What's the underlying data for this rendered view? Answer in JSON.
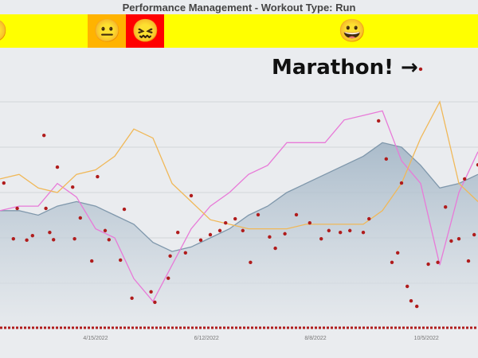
{
  "chart_data": {
    "type": "line",
    "title": "Performance Management - Workout Type: Run",
    "annotation": "Marathon! →",
    "x_tick_labels": [
      "4/15/2022",
      "6/12/2022",
      "8/8/2022",
      "10/5/2022"
    ],
    "x_tick_dates": [
      "2022-04-15",
      "2022-06-12",
      "2022-08-08",
      "2022-10-05"
    ],
    "xlim": [
      "2022-02-24",
      "2022-11-01"
    ],
    "ylim": [
      0,
      6
    ],
    "grid": true,
    "legend": "none",
    "x": [
      "2022-02-24",
      "2022-03-06",
      "2022-03-16",
      "2022-03-26",
      "2022-04-05",
      "2022-04-15",
      "2022-04-25",
      "2022-05-05",
      "2022-05-15",
      "2022-05-25",
      "2022-06-04",
      "2022-06-14",
      "2022-06-24",
      "2022-07-04",
      "2022-07-14",
      "2022-07-24",
      "2022-08-03",
      "2022-08-13",
      "2022-08-23",
      "2022-09-02",
      "2022-09-12",
      "2022-09-22",
      "2022-10-02",
      "2022-10-12",
      "2022-10-22",
      "2022-11-01"
    ],
    "series": [
      {
        "type": "area",
        "color": "#7f97ab",
        "values": [
          2.6,
          2.6,
          2.5,
          2.7,
          2.8,
          2.7,
          2.5,
          2.3,
          1.9,
          1.7,
          1.8,
          2.0,
          2.2,
          2.5,
          2.7,
          3.0,
          3.2,
          3.4,
          3.6,
          3.8,
          4.1,
          4.0,
          3.6,
          3.1,
          3.2,
          3.4
        ]
      },
      {
        "type": "line",
        "color": "#e87ad8",
        "values": [
          2.6,
          2.7,
          2.7,
          3.2,
          2.9,
          2.2,
          2.0,
          1.1,
          0.6,
          1.4,
          2.2,
          2.7,
          3.0,
          3.4,
          3.6,
          4.1,
          4.1,
          4.1,
          4.6,
          4.7,
          4.8,
          3.7,
          3.2,
          1.4,
          3.0,
          3.9
        ]
      },
      {
        "type": "line",
        "color": "#f0b858",
        "values": [
          3.3,
          3.4,
          3.1,
          3.0,
          3.4,
          3.5,
          3.8,
          4.4,
          4.2,
          3.2,
          2.8,
          2.4,
          2.3,
          2.2,
          2.2,
          2.2,
          2.3,
          2.3,
          2.3,
          2.3,
          2.6,
          3.2,
          4.2,
          5.0,
          3.2,
          2.8
        ]
      }
    ],
    "points": {
      "color": "#b01c1c",
      "values": [
        [
          "2022-02-26",
          3.21
        ],
        [
          "2022-03-03",
          1.98
        ],
        [
          "2022-03-05",
          2.65
        ],
        [
          "2022-03-10",
          1.95
        ],
        [
          "2022-03-13",
          2.05
        ],
        [
          "2022-03-19",
          4.26
        ],
        [
          "2022-03-20",
          2.65
        ],
        [
          "2022-03-22",
          2.12
        ],
        [
          "2022-03-24",
          1.96
        ],
        [
          "2022-03-26",
          3.56
        ],
        [
          "2022-04-03",
          3.12
        ],
        [
          "2022-04-04",
          1.98
        ],
        [
          "2022-04-07",
          2.44
        ],
        [
          "2022-04-13",
          1.49
        ],
        [
          "2022-04-16",
          3.35
        ],
        [
          "2022-04-20",
          2.16
        ],
        [
          "2022-04-22",
          1.96
        ],
        [
          "2022-04-28",
          1.51
        ],
        [
          "2022-04-30",
          2.63
        ],
        [
          "2022-05-04",
          0.67
        ],
        [
          "2022-05-14",
          0.81
        ],
        [
          "2022-05-16",
          0.58
        ],
        [
          "2022-05-23",
          1.11
        ],
        [
          "2022-05-24",
          1.6
        ],
        [
          "2022-05-28",
          2.12
        ],
        [
          "2022-06-01",
          1.67
        ],
        [
          "2022-06-04",
          2.93
        ],
        [
          "2022-06-09",
          1.95
        ],
        [
          "2022-06-14",
          2.07
        ],
        [
          "2022-06-19",
          2.16
        ],
        [
          "2022-06-22",
          2.33
        ],
        [
          "2022-06-27",
          2.42
        ],
        [
          "2022-07-01",
          2.16
        ],
        [
          "2022-07-05",
          1.46
        ],
        [
          "2022-07-09",
          2.51
        ],
        [
          "2022-07-15",
          2.02
        ],
        [
          "2022-07-18",
          1.77
        ],
        [
          "2022-07-23",
          2.09
        ],
        [
          "2022-07-29",
          2.51
        ],
        [
          "2022-08-05",
          2.33
        ],
        [
          "2022-08-11",
          1.98
        ],
        [
          "2022-08-15",
          2.16
        ],
        [
          "2022-08-21",
          2.12
        ],
        [
          "2022-08-26",
          2.16
        ],
        [
          "2022-09-02",
          2.12
        ],
        [
          "2022-09-05",
          2.42
        ],
        [
          "2022-09-10",
          4.58
        ],
        [
          "2022-09-14",
          3.74
        ],
        [
          "2022-09-17",
          1.46
        ],
        [
          "2022-09-20",
          1.67
        ],
        [
          "2022-09-22",
          3.21
        ],
        [
          "2022-09-25",
          0.93
        ],
        [
          "2022-09-27",
          0.61
        ],
        [
          "2022-09-30",
          0.49
        ],
        [
          "2022-10-02",
          5.72
        ],
        [
          "2022-10-06",
          1.42
        ],
        [
          "2022-10-11",
          1.46
        ],
        [
          "2022-10-15",
          2.68
        ],
        [
          "2022-10-18",
          1.93
        ],
        [
          "2022-10-22",
          1.98
        ],
        [
          "2022-10-25",
          3.3
        ],
        [
          "2022-10-27",
          1.49
        ],
        [
          "2022-10-30",
          2.07
        ],
        [
          "2022-11-01",
          3.61
        ]
      ]
    }
  },
  "mood_band": {
    "segments": [
      {
        "color": "#ffff00",
        "from": "2022-02-24",
        "to": "2022-04-11"
      },
      {
        "color": "#ffb300",
        "from": "2022-04-11",
        "to": "2022-05-01"
      },
      {
        "color": "#ff0000",
        "from": "2022-05-01",
        "to": "2022-05-21"
      },
      {
        "color": "#ffff00",
        "from": "2022-05-21",
        "to": "2022-11-01"
      }
    ],
    "faces": [
      {
        "icon": "smiling-face-icon",
        "glyph": "🙂",
        "date": "2022-02-24"
      },
      {
        "icon": "neutral-face-icon",
        "glyph": "😐",
        "date": "2022-04-21"
      },
      {
        "icon": "confounded-face-icon",
        "glyph": "😖",
        "date": "2022-05-11"
      },
      {
        "icon": "grinning-face-icon",
        "glyph": "😀",
        "date": "2022-08-27"
      }
    ]
  }
}
